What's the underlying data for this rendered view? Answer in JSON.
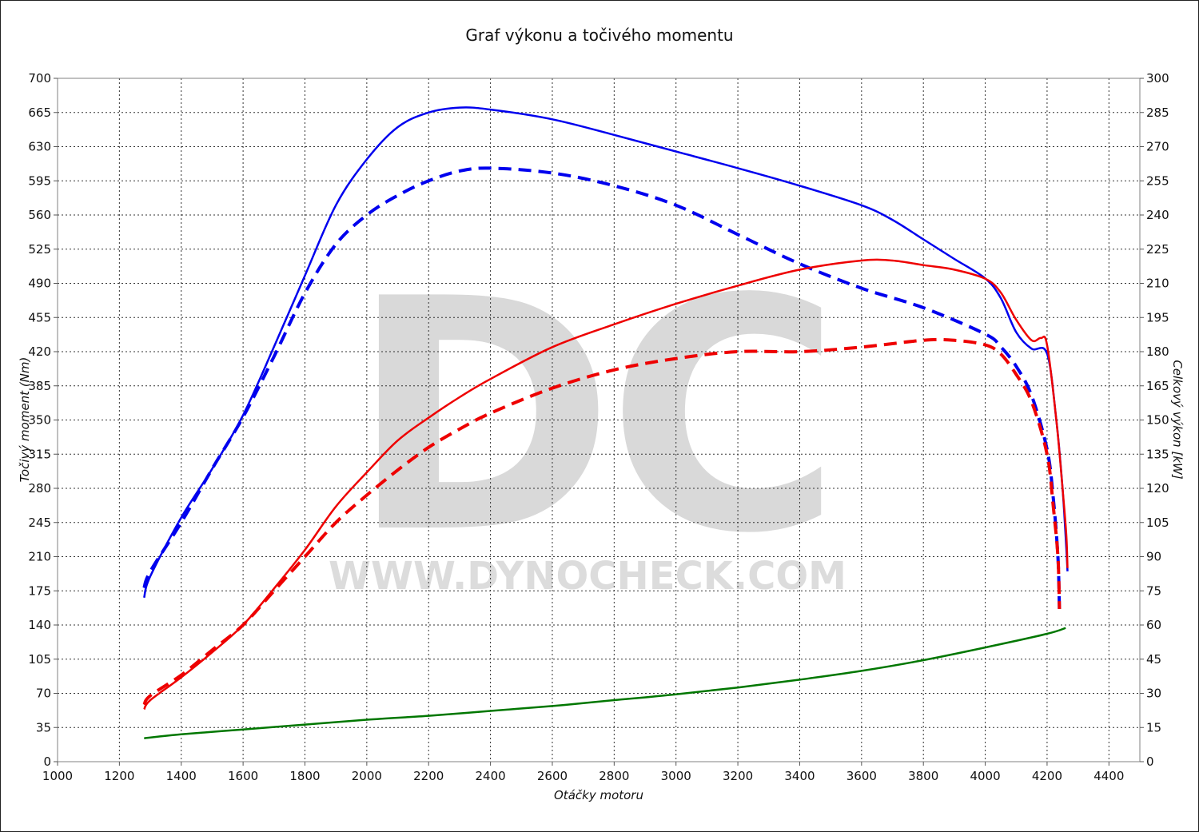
{
  "chart_data": {
    "type": "line",
    "title": "Graf výkonu a točivého momentu",
    "xlabel": "Otáčky motoru",
    "ylabel_left": "Točivý moment (Nm)",
    "ylabel_right": "Celkový výkon [kW]",
    "xlim": [
      1000,
      4500
    ],
    "ylim_left": [
      0,
      700
    ],
    "ylim_right": [
      0,
      300
    ],
    "x_ticks": [
      1000,
      1200,
      1400,
      1600,
      1800,
      2000,
      2200,
      2400,
      2600,
      2800,
      3000,
      3200,
      3400,
      3600,
      3800,
      4000,
      4200,
      4400
    ],
    "y_left_ticks": [
      0,
      35,
      70,
      105,
      140,
      175,
      210,
      245,
      280,
      315,
      350,
      385,
      420,
      455,
      490,
      525,
      560,
      595,
      630,
      665,
      700
    ],
    "y_right_ticks": [
      0,
      15,
      30,
      45,
      60,
      75,
      90,
      105,
      120,
      135,
      150,
      165,
      180,
      195,
      210,
      225,
      240,
      255,
      270,
      285,
      300
    ],
    "grid": true,
    "watermark": {
      "logo": "DC",
      "url": "WWW.DYNOCHECK.COM"
    },
    "series": [
      {
        "axis": "left",
        "color": "#0000ee",
        "dash": false,
        "x": [
          1280,
          1300,
          1400,
          1500,
          1600,
          1700,
          1800,
          1900,
          2000,
          2100,
          2200,
          2300,
          2400,
          2600,
          2800,
          3000,
          3200,
          3400,
          3600,
          3700,
          3800,
          3900,
          4000,
          4050,
          4100,
          4150,
          4200,
          4230,
          4250,
          4262,
          4266
        ],
        "y": [
          168,
          190,
          250,
          300,
          355,
          425,
          498,
          570,
          617,
          650,
          665,
          670,
          668,
          658,
          642,
          625,
          608,
          590,
          570,
          555,
          535,
          515,
          495,
          475,
          440,
          423,
          418,
          350,
          280,
          220,
          195
        ]
      },
      {
        "axis": "left",
        "color": "#0000ee",
        "dash": true,
        "x": [
          1280,
          1300,
          1400,
          1500,
          1600,
          1700,
          1800,
          1900,
          2000,
          2100,
          2200,
          2300,
          2400,
          2600,
          2800,
          3000,
          3200,
          3400,
          3600,
          3800,
          4000,
          4050,
          4100,
          4150,
          4200,
          4220,
          4235,
          4240
        ],
        "y": [
          178,
          195,
          245,
          300,
          353,
          415,
          480,
          530,
          560,
          580,
          595,
          605,
          608,
          603,
          590,
          570,
          540,
          510,
          485,
          465,
          438,
          425,
          405,
          375,
          320,
          270,
          210,
          155
        ]
      },
      {
        "axis": "right",
        "color": "#ee0000",
        "dash": false,
        "x": [
          1280,
          1300,
          1400,
          1500,
          1600,
          1700,
          1800,
          1900,
          2000,
          2100,
          2200,
          2300,
          2400,
          2600,
          2800,
          3000,
          3200,
          3400,
          3600,
          3700,
          3800,
          3900,
          4000,
          4050,
          4100,
          4150,
          4180,
          4200,
          4230,
          4250,
          4262,
          4266
        ],
        "y": [
          23,
          27,
          37,
          48,
          60,
          76,
          93,
          112,
          127,
          141,
          151,
          160,
          168,
          182,
          192,
          201,
          209,
          216,
          220,
          220,
          218,
          216,
          212,
          206,
          194,
          185,
          186,
          183,
          150,
          120,
          100,
          85
        ]
      },
      {
        "axis": "right",
        "color": "#ee0000",
        "dash": true,
        "x": [
          1280,
          1300,
          1400,
          1500,
          1600,
          1700,
          1800,
          1900,
          2000,
          2100,
          2200,
          2300,
          2400,
          2600,
          2800,
          3000,
          3200,
          3400,
          3600,
          3800,
          3900,
          4000,
          4050,
          4100,
          4150,
          4200,
          4220,
          4235,
          4240
        ],
        "y": [
          25,
          29,
          38,
          49,
          60,
          75,
          90,
          105,
          117,
          128,
          138,
          146,
          153,
          164,
          172,
          177,
          180,
          180,
          182,
          185,
          185,
          183,
          179,
          170,
          158,
          135,
          112,
          90,
          67
        ]
      },
      {
        "axis": "left",
        "color": "#007700",
        "dash": false,
        "x": [
          1280,
          1400,
          1600,
          1800,
          2000,
          2200,
          2400,
          2600,
          2800,
          3000,
          3200,
          3400,
          3600,
          3800,
          4000,
          4200,
          4260
        ],
        "y": [
          24,
          28,
          33,
          38,
          43,
          47,
          52,
          57,
          63,
          69,
          76,
          84,
          93,
          104,
          117,
          131,
          137
        ]
      }
    ]
  }
}
